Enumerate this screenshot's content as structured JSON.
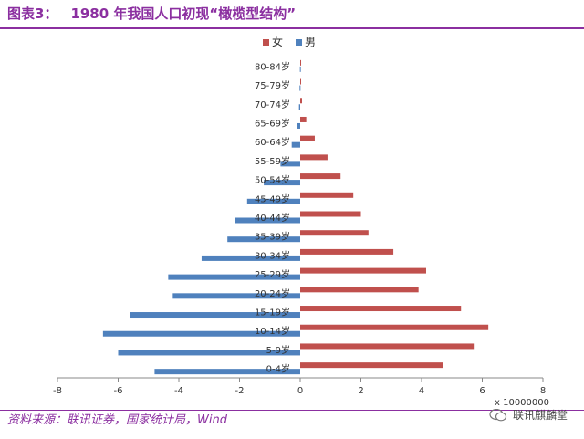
{
  "header": {
    "figure_number": "图表3：",
    "title": "1980 年我国人口初现“橄榄型结构”"
  },
  "footer": {
    "source": "资料来源：联讯证券，国家统计局，Wind",
    "brand": "联讯麒麟堂"
  },
  "colors": {
    "accent": "#8b2fa0",
    "female": "#c0504d",
    "male": "#4f81bd"
  },
  "chart_data": {
    "type": "bar",
    "orientation": "horizontal",
    "title": "",
    "categories": [
      "0-4岁",
      "5-9岁",
      "10-14岁",
      "15-19岁",
      "20-24岁",
      "25-29岁",
      "30-34岁",
      "35-39岁",
      "40-44岁",
      "45-49岁",
      "50-54岁",
      "55-59岁",
      "60-64岁",
      "65-69岁",
      "70-74岁",
      "75-79岁",
      "80-84岁"
    ],
    "series": [
      {
        "name": "女",
        "color": "#c0504d",
        "values": [
          4.7,
          5.75,
          6.2,
          5.3,
          3.9,
          4.15,
          3.07,
          2.25,
          2.0,
          1.75,
          1.33,
          0.9,
          0.48,
          0.2,
          0.06,
          0.03,
          0.02
        ]
      },
      {
        "name": "男",
        "color": "#4f81bd",
        "values": [
          -4.8,
          -6.0,
          -6.5,
          -5.6,
          -4.2,
          -4.35,
          -3.25,
          -2.4,
          -2.15,
          -1.75,
          -1.2,
          -0.65,
          -0.28,
          -0.1,
          -0.04,
          -0.02,
          -0.01
        ]
      }
    ],
    "xlim": [
      -8,
      8
    ],
    "xticks": [
      "-8",
      "-6",
      "-4",
      "-2",
      "0",
      "2",
      "4",
      "6",
      "8"
    ],
    "x_unit": "x 10000000",
    "legend_position": "top",
    "grid": false
  }
}
